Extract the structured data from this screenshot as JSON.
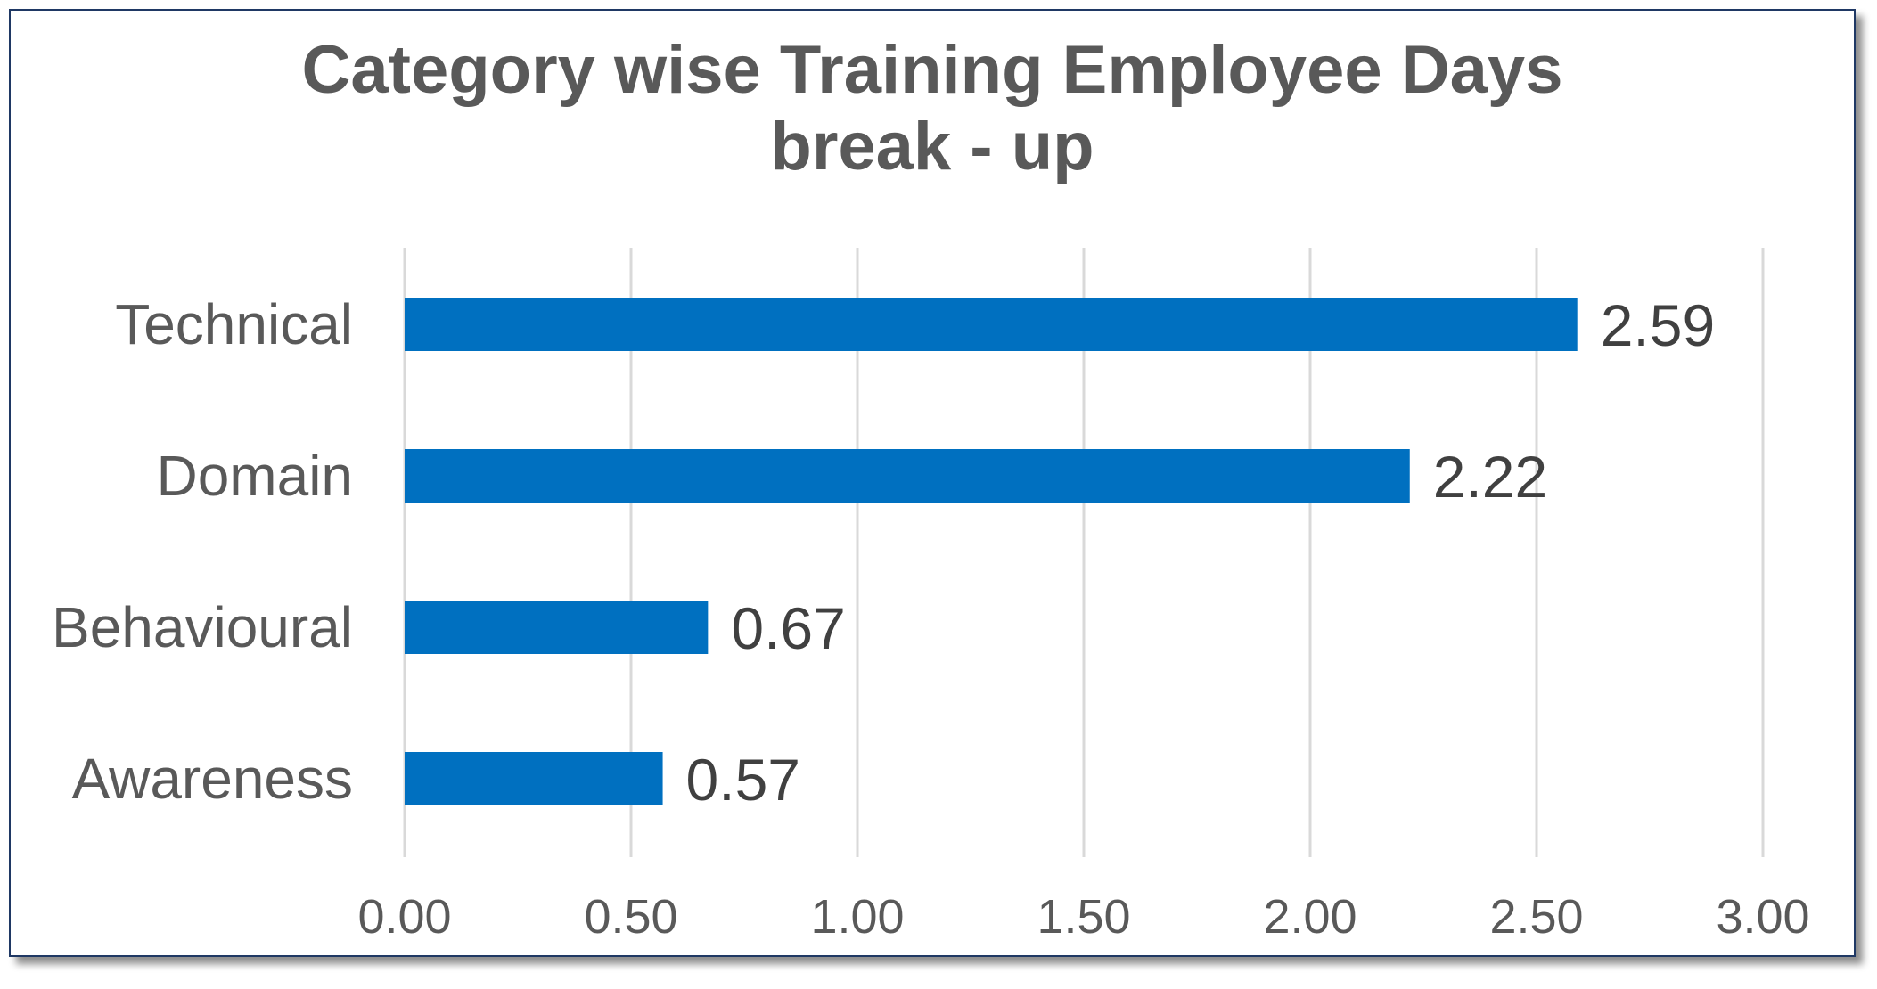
{
  "chart_data": {
    "type": "bar",
    "orientation": "horizontal",
    "title_lines": [
      "Category wise Training Employee Days",
      "break - up"
    ],
    "categories": [
      "Technical",
      "Domain",
      "Behavioural",
      "Awareness"
    ],
    "values": [
      2.59,
      2.22,
      0.67,
      0.57
    ],
    "data_labels": [
      "2.59",
      "2.22",
      "0.67",
      "0.57"
    ],
    "xlim": [
      0,
      3
    ],
    "x_ticks": [
      0,
      0.5,
      1,
      1.5,
      2,
      2.5,
      3
    ],
    "x_tick_labels": [
      "0.00",
      "0.50",
      "1.00",
      "1.50",
      "2.00",
      "2.50",
      "3.00"
    ],
    "grid": "vertical",
    "legend": "none",
    "colors": {
      "bar": "#0070C0",
      "grid": "#D9D9D9",
      "text": "#595959",
      "border": "#1F3864"
    }
  }
}
